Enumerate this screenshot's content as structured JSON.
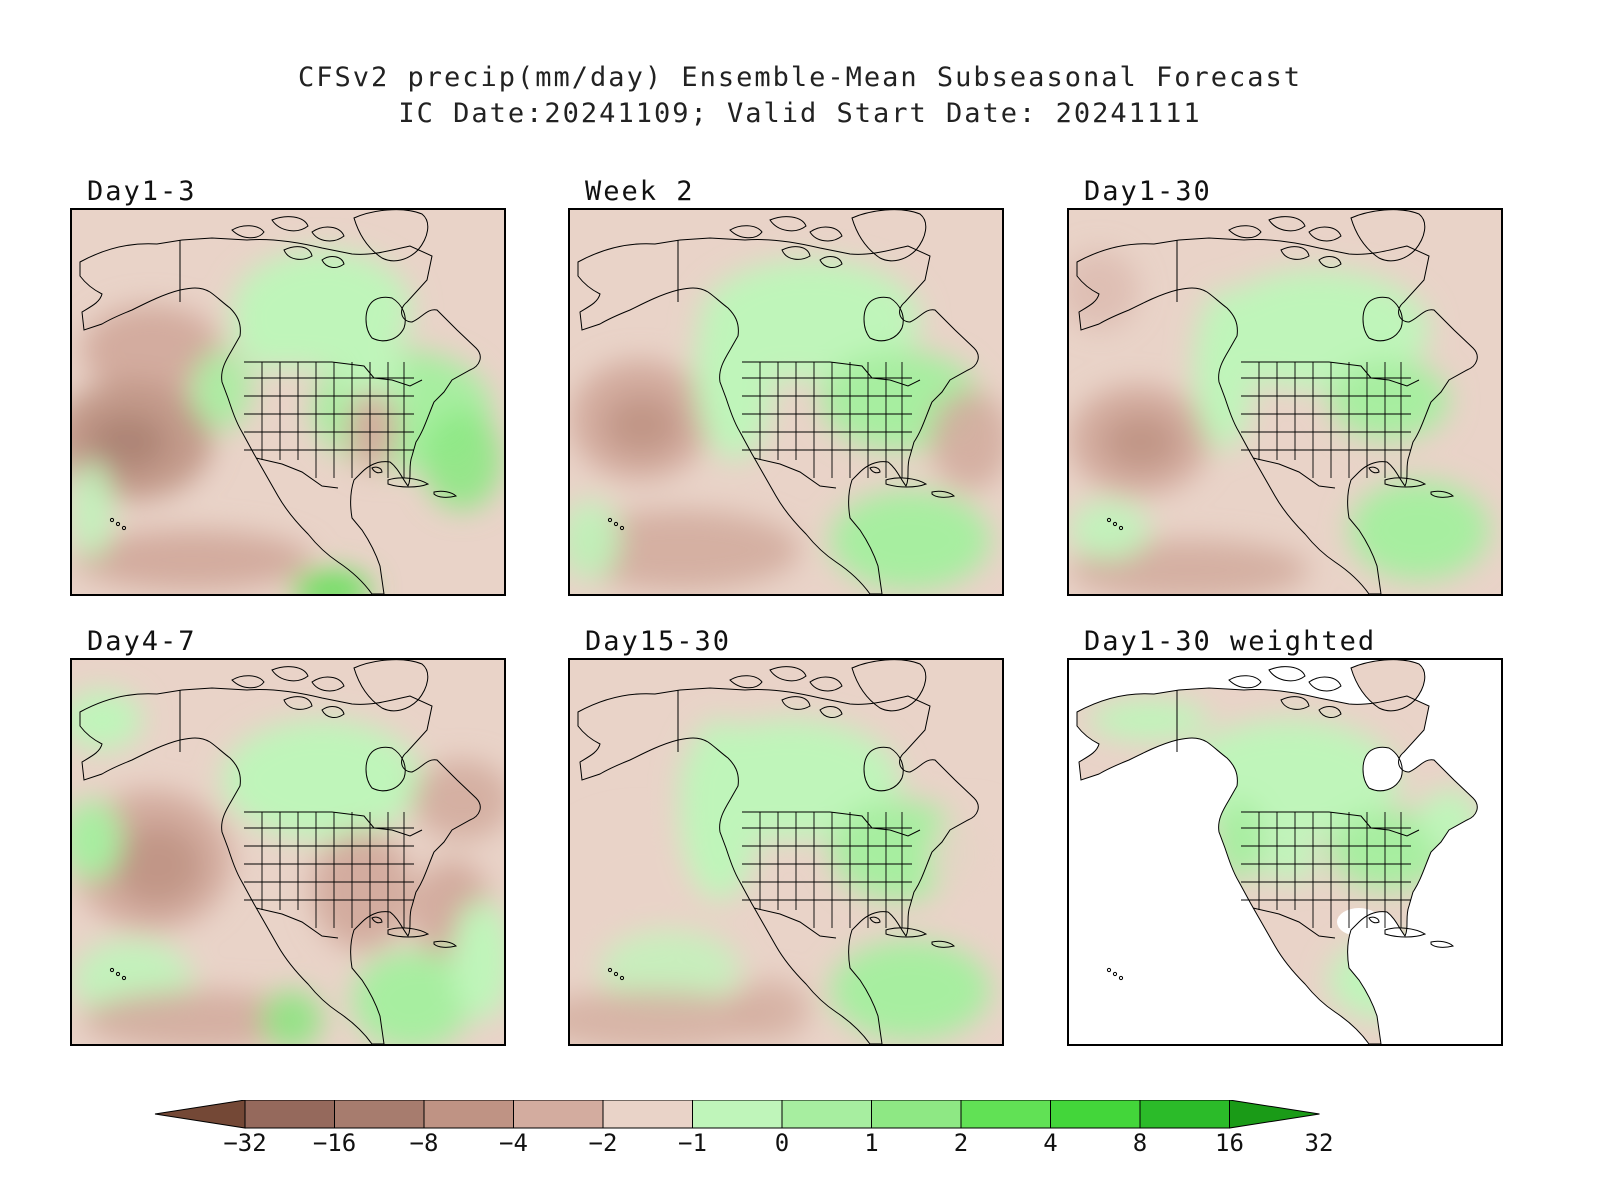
{
  "title": {
    "line1": "CFSv2 precip(mm/day) Ensemble-Mean Subseasonal Forecast",
    "line2": "IC Date:20241109; Valid Start Date: 20241111"
  },
  "panels": [
    {
      "id": "day1-3",
      "label": "Day1-3",
      "theme": "mixed-dry"
    },
    {
      "id": "week2",
      "label": "Week 2",
      "theme": "mixed"
    },
    {
      "id": "day1-30",
      "label": "Day1-30",
      "theme": "mixed"
    },
    {
      "id": "day4-7",
      "label": "Day4-7",
      "theme": "mixed-dry"
    },
    {
      "id": "day15-30",
      "label": "Day15-30",
      "theme": "mixed"
    },
    {
      "id": "day1-30-weighted",
      "label": "Day1-30 weighted",
      "theme": "land-only"
    }
  ],
  "colorbar": {
    "tick_labels": [
      "−32",
      "−16",
      "−8",
      "−4",
      "−2",
      "−1",
      "0",
      "1",
      "2",
      "4",
      "8",
      "16",
      "32"
    ],
    "colors": [
      "#744836",
      "#95695c",
      "#a77c6e",
      "#bf9384",
      "#d3ac9f",
      "#e9d3c8",
      "#bff5ba",
      "#a7eea0",
      "#8ee884",
      "#61e155",
      "#43d63a",
      "#2bbb29",
      "#1a9b17"
    ]
  }
}
